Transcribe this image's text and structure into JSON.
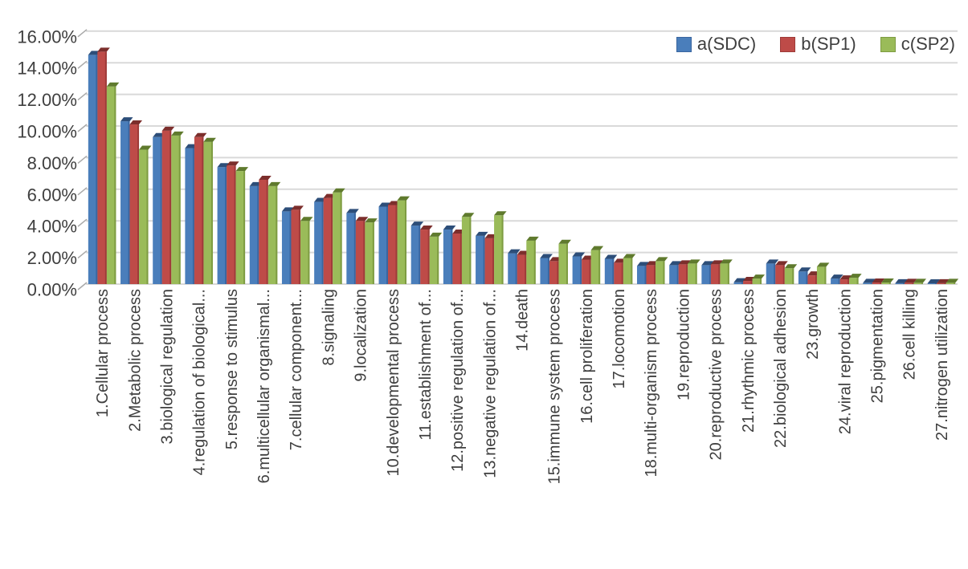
{
  "page": {
    "background_color": "#FFFFFF",
    "text_color": "#3F3F3F",
    "gridline_color": "#D9D9D9",
    "tick_color": "#A9A9A9"
  },
  "chart_data": {
    "type": "bar",
    "title": "",
    "xlabel": "",
    "ylabel": "",
    "value_unit": "percent",
    "ylim": [
      0,
      16
    ],
    "ytick_step": 2,
    "yticks": [
      "0.00%",
      "2.00%",
      "4.00%",
      "6.00%",
      "8.00%",
      "10.00%",
      "12.00%",
      "14.00%",
      "16.00%"
    ],
    "grid": true,
    "legend_position": "top-right",
    "bar_style": "3d-clustered-column",
    "categories": [
      "1.Cellular process",
      "2.Metabolic process",
      "3.biological regulation",
      "4.regulation of biological...",
      "5.response to stimulus",
      "6.multicellular organismal...",
      "7.cellular component...",
      "8.signaling",
      "9.localization",
      "10.developmental process",
      "11.establishment of...",
      "12.positive regulation of...",
      "13.negative regulation of...",
      "14.death",
      "15.immune system process",
      "16.cell proliferation",
      "17.locomotion",
      "18.multi-organism process",
      "19.reproduction",
      "20.reproductive process",
      "21.rhythmic process",
      "22.biological adhesion",
      "23.growth",
      "24.viral reproduction",
      "25.pigmentation",
      "26.cell killing",
      "27.nitrogen utilization"
    ],
    "series": [
      {
        "name": "a(SDC)",
        "color": "#4A7EBB",
        "top_color": "#2D4E79",
        "edge_color": "#3A66A0",
        "values": [
          14.5,
          10.3,
          9.3,
          8.6,
          7.4,
          6.2,
          4.6,
          5.2,
          4.5,
          4.9,
          3.7,
          3.45,
          3.05,
          1.95,
          1.65,
          1.75,
          1.6,
          1.15,
          1.2,
          1.2,
          0.12,
          1.3,
          0.8,
          0.35,
          0.08,
          0.06,
          0.05
        ]
      },
      {
        "name": "b(SP1)",
        "color": "#BE4B48",
        "top_color": "#7C2E2C",
        "edge_color": "#9E3B39",
        "values": [
          14.7,
          10.1,
          9.7,
          9.3,
          7.5,
          6.6,
          4.7,
          5.45,
          4.0,
          5.0,
          3.45,
          3.2,
          2.9,
          1.85,
          1.45,
          1.55,
          1.35,
          1.2,
          1.25,
          1.25,
          0.2,
          1.2,
          0.55,
          0.3,
          0.1,
          0.08,
          0.06
        ]
      },
      {
        "name": "c(SP2)",
        "color": "#9ABB59",
        "top_color": "#5F7A2D",
        "edge_color": "#7E9C42",
        "values": [
          12.5,
          8.5,
          9.4,
          9.0,
          7.15,
          6.2,
          4.0,
          5.8,
          3.9,
          5.3,
          3.0,
          4.25,
          4.35,
          2.75,
          2.55,
          2.15,
          1.65,
          1.45,
          1.3,
          1.3,
          0.35,
          1.0,
          1.1,
          0.4,
          0.1,
          0.08,
          0.08
        ]
      }
    ]
  }
}
